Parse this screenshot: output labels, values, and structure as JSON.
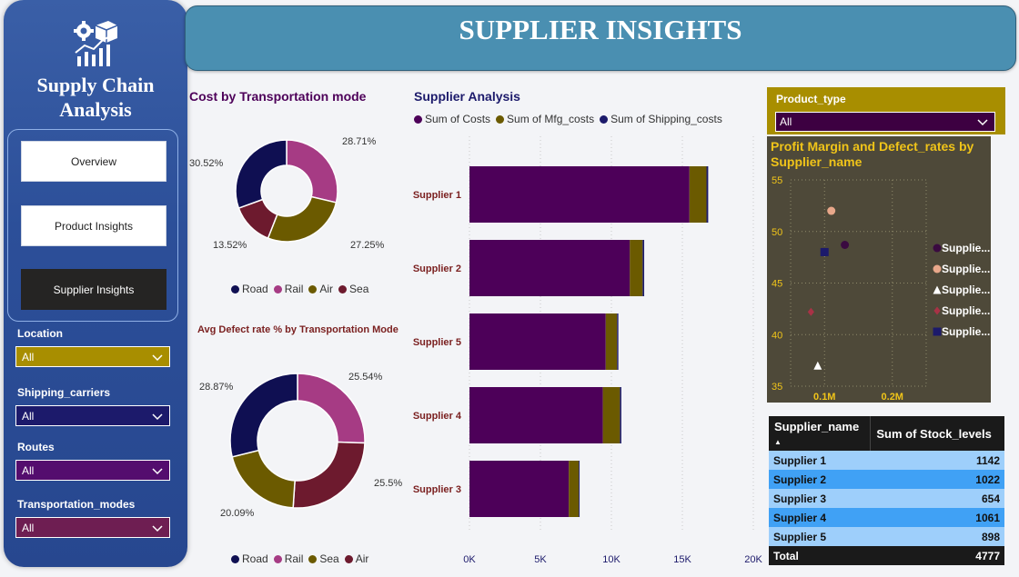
{
  "app": {
    "title": "Supply Chain Analysis",
    "title_line1": "Supply Chain",
    "title_line2": "Analysis",
    "logo_icon": "gear-box-chart-icon"
  },
  "nav": [
    {
      "label": "Overview",
      "active": false
    },
    {
      "label": "Product Insights",
      "active": false
    },
    {
      "label": "Supplier Insights",
      "active": true
    }
  ],
  "filters": [
    {
      "label": "Location",
      "value": "All",
      "color": "#a88e00"
    },
    {
      "label": "Shipping_carriers",
      "value": "All",
      "color": "#1c1a6b"
    },
    {
      "label": "Routes",
      "value": "All",
      "color": "#540d6e"
    },
    {
      "label": "Transportation_modes",
      "value": "All",
      "color": "#6e1e52"
    }
  ],
  "header": {
    "title": "SUPPLIER INSIGHTS"
  },
  "colors": {
    "road": "#0f0f52",
    "rail": "#a63b84",
    "air": "#6b5a00",
    "sea": "#6d1a2e",
    "costs": "#4d0059",
    "mfg": "#6b5a00",
    "shipping": "#1c1a6b"
  },
  "product_type": {
    "label": "Product_type",
    "value": "All"
  },
  "chart_data": [
    {
      "type": "pie",
      "title": "Cost by Transportation mode",
      "labels": [
        "Rail",
        "Air",
        "Sea",
        "Road"
      ],
      "values": [
        28.71,
        27.25,
        13.52,
        30.52
      ],
      "value_labels": [
        "28.71%",
        "27.25%",
        "13.52%",
        "30.52%"
      ],
      "legend": [
        "Road",
        "Rail",
        "Air",
        "Sea"
      ],
      "donut": true
    },
    {
      "type": "pie",
      "title": "Avg Defect rate % by Transportation Mode",
      "labels": [
        "Rail",
        "Sea",
        "Air",
        "Road"
      ],
      "values": [
        25.54,
        25.5,
        20.09,
        28.87
      ],
      "value_labels": [
        "25.54%",
        "25.5%",
        "20.09%",
        "28.87%"
      ],
      "legend": [
        "Road",
        "Rail",
        "Sea",
        "Air"
      ],
      "donut": true
    },
    {
      "type": "bar",
      "orientation": "horizontal",
      "stacked": true,
      "title": "Supplier Analysis",
      "categories": [
        "Supplier 1",
        "Supplier 2",
        "Supplier 5",
        "Supplier 4",
        "Supplier 3"
      ],
      "series": [
        {
          "name": "Sum of Costs",
          "values": [
            15500,
            11300,
            9600,
            9400,
            7000
          ]
        },
        {
          "name": "Sum of Mfg_costs",
          "values": [
            1200,
            900,
            800,
            1200,
            700
          ]
        },
        {
          "name": "Sum of Shipping_costs",
          "values": [
            120,
            110,
            90,
            100,
            60
          ]
        }
      ],
      "xticks": [
        "0K",
        "5K",
        "10K",
        "15K",
        "20K"
      ],
      "xlim": [
        0,
        20000
      ]
    },
    {
      "type": "scatter",
      "title": "Profit Margin and Defect_rates by Supplier_name",
      "points": [
        {
          "x": 0.13,
          "y": 48.7,
          "shape": "circle",
          "color": "#3a0a40"
        },
        {
          "x": 0.11,
          "y": 52.0,
          "shape": "circle",
          "color": "#e8a78a"
        },
        {
          "x": 0.09,
          "y": 37.0,
          "shape": "triangle",
          "color": "#ffffff"
        },
        {
          "x": 0.08,
          "y": 42.2,
          "shape": "diamond",
          "color": "#a83246"
        },
        {
          "x": 0.1,
          "y": 48.0,
          "shape": "square",
          "color": "#1c1a6b"
        }
      ],
      "legend": [
        {
          "label": "Supplie...",
          "shape": "circle",
          "color": "#3a0a40"
        },
        {
          "label": "Supplie...",
          "shape": "circle",
          "color": "#e8a78a"
        },
        {
          "label": "Supplie...",
          "shape": "triangle",
          "color": "#ffffff"
        },
        {
          "label": "Supplie...",
          "shape": "diamond",
          "color": "#a83246"
        },
        {
          "label": "Supplie...",
          "shape": "square",
          "color": "#1c1a6b"
        }
      ],
      "yticks": [
        "55",
        "50",
        "45",
        "40",
        "35"
      ],
      "xticks": [
        "0.1M",
        "0.2M"
      ],
      "ylim": [
        35,
        55
      ],
      "xlim": [
        0.05,
        0.25
      ]
    },
    {
      "type": "table",
      "columns": [
        "Supplier_name",
        "Sum of Stock_levels"
      ],
      "rows": [
        [
          "Supplier 1",
          "1142"
        ],
        [
          "Supplier 2",
          "1022"
        ],
        [
          "Supplier 3",
          "654"
        ],
        [
          "Supplier 4",
          "1061"
        ],
        [
          "Supplier 5",
          "898"
        ]
      ],
      "total": [
        "Total",
        "4777"
      ]
    }
  ]
}
